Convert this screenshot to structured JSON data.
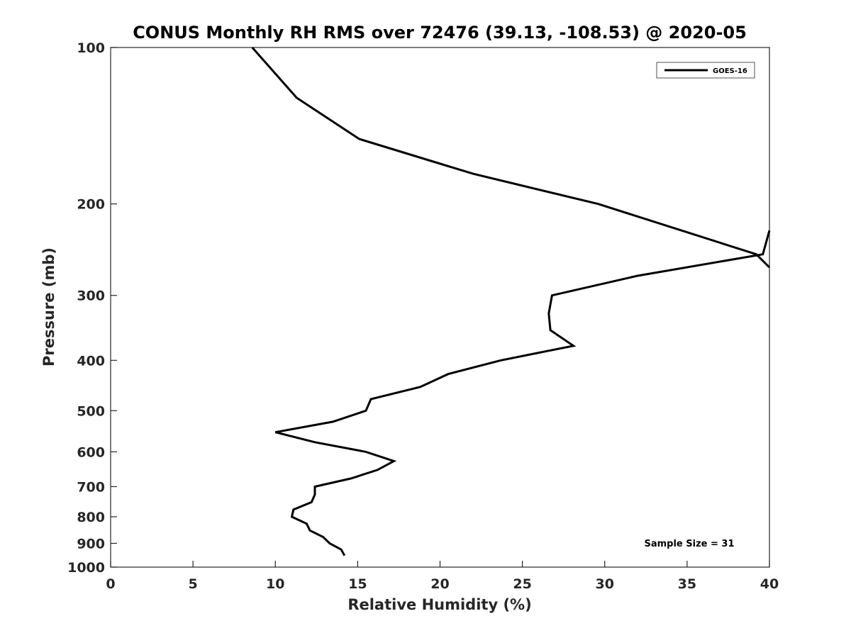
{
  "chart_data": {
    "type": "line",
    "title": "CONUS Monthly RH RMS over 72476 (39.13, -108.53) @ 2020-05",
    "xlabel": "Relative Humidity (%)",
    "ylabel": "Pressure (mb)",
    "xlim": [
      0,
      40
    ],
    "ylim": [
      100,
      1000
    ],
    "y_scale": "log",
    "y_reversed": true,
    "x_ticks": [
      0,
      5,
      10,
      15,
      20,
      25,
      30,
      35,
      40
    ],
    "y_ticks": [
      100,
      200,
      300,
      400,
      500,
      600,
      700,
      800,
      900,
      1000
    ],
    "grid": false,
    "legend_position": "top-right",
    "annotation": "Sample Size = 31",
    "colors": {
      "line": "#000000",
      "axis": "#262626"
    },
    "series": [
      {
        "name": "GOES-16",
        "segments": [
          [
            {
              "x": 8.6,
              "p": 100
            },
            {
              "x": 11.3,
              "p": 125
            },
            {
              "x": 15.1,
              "p": 150
            },
            {
              "x": 22.0,
              "p": 175
            },
            {
              "x": 29.6,
              "p": 200
            },
            {
              "x": 39.2,
              "p": 250
            },
            {
              "x": 40.0,
              "p": 265
            }
          ],
          [
            {
              "x": 40.0,
              "p": 225
            },
            {
              "x": 39.6,
              "p": 250
            },
            {
              "x": 32.0,
              "p": 275
            },
            {
              "x": 26.8,
              "p": 300
            },
            {
              "x": 26.6,
              "p": 325
            },
            {
              "x": 26.7,
              "p": 350
            },
            {
              "x": 28.1,
              "p": 375
            },
            {
              "x": 23.7,
              "p": 400
            },
            {
              "x": 20.5,
              "p": 425
            },
            {
              "x": 18.8,
              "p": 450
            },
            {
              "x": 15.8,
              "p": 475
            },
            {
              "x": 15.5,
              "p": 500
            },
            {
              "x": 13.5,
              "p": 525
            },
            {
              "x": 10.0,
              "p": 550
            },
            {
              "x": 12.4,
              "p": 575
            },
            {
              "x": 15.5,
              "p": 600
            },
            {
              "x": 17.2,
              "p": 625
            },
            {
              "x": 16.2,
              "p": 650
            },
            {
              "x": 14.6,
              "p": 675
            },
            {
              "x": 12.4,
              "p": 700
            },
            {
              "x": 12.4,
              "p": 725
            },
            {
              "x": 12.2,
              "p": 750
            },
            {
              "x": 11.1,
              "p": 775
            },
            {
              "x": 11.0,
              "p": 800
            },
            {
              "x": 11.9,
              "p": 825
            },
            {
              "x": 12.1,
              "p": 850
            },
            {
              "x": 12.9,
              "p": 875
            },
            {
              "x": 13.3,
              "p": 900
            },
            {
              "x": 14.0,
              "p": 925
            },
            {
              "x": 14.2,
              "p": 950
            }
          ]
        ]
      }
    ]
  }
}
